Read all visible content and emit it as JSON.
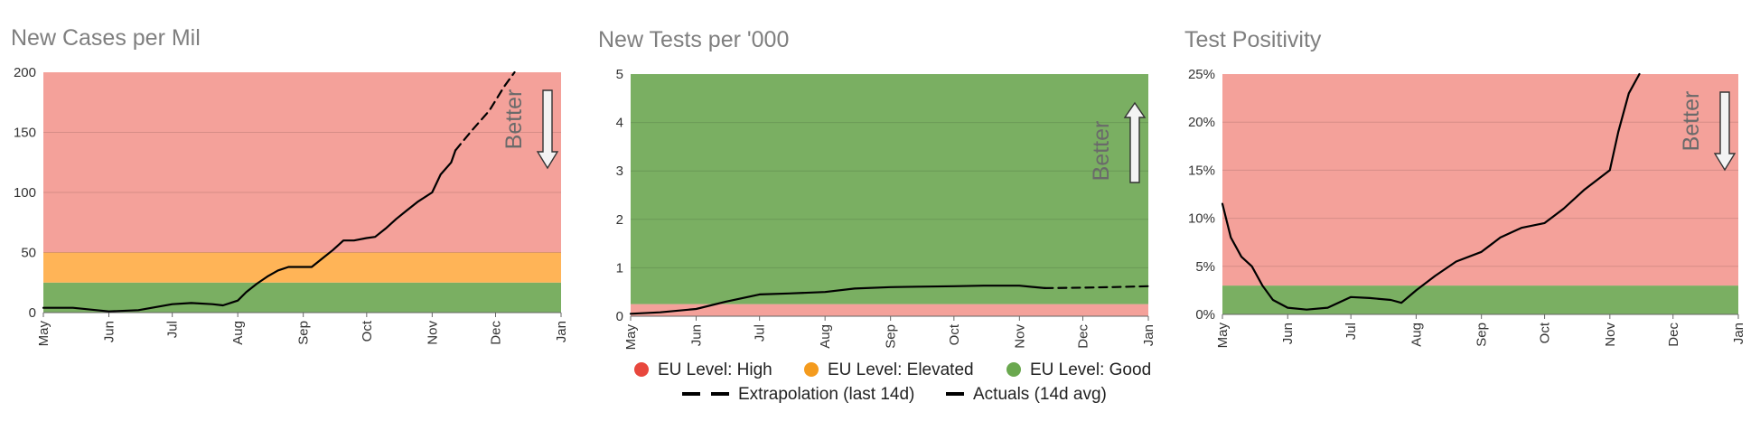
{
  "colors": {
    "high": "#f4a19a",
    "elevated": "#ffb457",
    "good": "#7aaf62",
    "grid": "#d9918a",
    "line": "#000000",
    "title": "#7f7f7f",
    "tick": "#333333",
    "legend_high": "#e8473d",
    "legend_elevated": "#f49b1e",
    "legend_good": "#6aa84f"
  },
  "chart_data": [
    {
      "type": "line",
      "title": "New Cases per Mil",
      "x_axis": "date",
      "xlim": [
        "2020-05-01",
        "2021-01-01"
      ],
      "x_ticks": [
        "May",
        "Jun",
        "Jul",
        "Aug",
        "Sep",
        "Oct",
        "Nov",
        "Dec",
        "Jan"
      ],
      "y_ticks": [
        "0",
        "50",
        "100",
        "150",
        "200"
      ],
      "ylim": [
        0,
        200
      ],
      "bands": [
        {
          "level": "good",
          "from": 0,
          "to": 25
        },
        {
          "level": "elevated",
          "from": 25,
          "to": 50
        },
        {
          "level": "high",
          "from": 50,
          "to": 200
        }
      ],
      "annotation": {
        "text": "Better",
        "arrow": "down"
      },
      "series": [
        {
          "style": "solid",
          "x": [
            "2020-05-01",
            "2020-05-15",
            "2020-06-01",
            "2020-06-15",
            "2020-07-01",
            "2020-07-10",
            "2020-07-20",
            "2020-07-25",
            "2020-08-01",
            "2020-08-05",
            "2020-08-10",
            "2020-08-15",
            "2020-08-20",
            "2020-08-25",
            "2020-09-01",
            "2020-09-05",
            "2020-09-10",
            "2020-09-15",
            "2020-09-20",
            "2020-09-25",
            "2020-10-01",
            "2020-10-05",
            "2020-10-10",
            "2020-10-15",
            "2020-10-20",
            "2020-10-25",
            "2020-11-01",
            "2020-11-05",
            "2020-11-10",
            "2020-11-12"
          ],
          "y": [
            4,
            4,
            1,
            2,
            7,
            8,
            7,
            6,
            10,
            17,
            24,
            30,
            35,
            38,
            38,
            38,
            45,
            52,
            60,
            60,
            62,
            63,
            70,
            78,
            85,
            92,
            100,
            115,
            125,
            135
          ]
        },
        {
          "style": "dashed",
          "x": [
            "2020-11-12",
            "2020-11-20",
            "2020-11-28",
            "2020-12-05",
            "2020-12-10"
          ],
          "y": [
            135,
            152,
            168,
            188,
            200
          ]
        }
      ]
    },
    {
      "type": "line",
      "title": "New Tests per '000",
      "x_axis": "date",
      "xlim": [
        "2020-05-01",
        "2021-01-01"
      ],
      "x_ticks": [
        "May",
        "Jun",
        "Jul",
        "Aug",
        "Sep",
        "Oct",
        "Nov",
        "Dec",
        "Jan"
      ],
      "y_ticks": [
        "0",
        "1",
        "2",
        "3",
        "4",
        "5"
      ],
      "ylim": [
        0,
        5
      ],
      "bands": [
        {
          "level": "high",
          "from": 0,
          "to": 0.25
        },
        {
          "level": "good",
          "from": 0.25,
          "to": 5
        }
      ],
      "annotation": {
        "text": "Better",
        "arrow": "up"
      },
      "series": [
        {
          "style": "solid",
          "x": [
            "2020-05-01",
            "2020-05-15",
            "2020-06-01",
            "2020-06-15",
            "2020-07-01",
            "2020-07-15",
            "2020-08-01",
            "2020-08-15",
            "2020-09-01",
            "2020-09-15",
            "2020-10-01",
            "2020-10-15",
            "2020-11-01",
            "2020-11-13"
          ],
          "y": [
            0.05,
            0.08,
            0.15,
            0.3,
            0.45,
            0.47,
            0.5,
            0.57,
            0.6,
            0.61,
            0.62,
            0.63,
            0.63,
            0.58
          ]
        },
        {
          "style": "dashed",
          "x": [
            "2020-11-13",
            "2020-12-01",
            "2020-12-15",
            "2021-01-01"
          ],
          "y": [
            0.58,
            0.59,
            0.6,
            0.62
          ]
        }
      ]
    },
    {
      "type": "line",
      "title": "Test Positivity",
      "x_axis": "date",
      "xlim": [
        "2020-05-01",
        "2021-01-01"
      ],
      "x_ticks": [
        "May",
        "Jun",
        "Jul",
        "Aug",
        "Sep",
        "Oct",
        "Nov",
        "Dec",
        "Jan"
      ],
      "y_ticks": [
        "0%",
        "5%",
        "10%",
        "15%",
        "20%",
        "25%"
      ],
      "ylim": [
        0,
        25
      ],
      "bands": [
        {
          "level": "good",
          "from": 0,
          "to": 3
        },
        {
          "level": "high",
          "from": 3,
          "to": 25
        }
      ],
      "annotation": {
        "text": "Better",
        "arrow": "down"
      },
      "series": [
        {
          "style": "solid",
          "x": [
            "2020-05-01",
            "2020-05-05",
            "2020-05-10",
            "2020-05-15",
            "2020-05-20",
            "2020-05-25",
            "2020-06-01",
            "2020-06-10",
            "2020-06-20",
            "2020-07-01",
            "2020-07-10",
            "2020-07-20",
            "2020-07-25",
            "2020-08-01",
            "2020-08-10",
            "2020-08-20",
            "2020-09-01",
            "2020-09-10",
            "2020-09-20",
            "2020-10-01",
            "2020-10-10",
            "2020-10-20",
            "2020-11-01",
            "2020-11-05",
            "2020-11-10",
            "2020-11-15"
          ],
          "y": [
            11.5,
            8,
            6,
            5,
            3,
            1.5,
            0.7,
            0.5,
            0.7,
            1.8,
            1.7,
            1.5,
            1.2,
            2.5,
            4,
            5.5,
            6.5,
            8,
            9,
            9.5,
            11,
            13,
            15,
            19,
            23,
            25
          ]
        }
      ]
    }
  ],
  "legend": {
    "items": [
      {
        "label": "EU Level: High",
        "level": "high",
        "kind": "dot"
      },
      {
        "label": "EU Level: Elevated",
        "level": "elevated",
        "kind": "dot"
      },
      {
        "label": "EU Level: Good",
        "level": "good",
        "kind": "dot"
      },
      {
        "label": "Extrapolation (last 14d)",
        "kind": "dashed"
      },
      {
        "label": "Actuals (14d avg)",
        "kind": "solid"
      }
    ]
  }
}
